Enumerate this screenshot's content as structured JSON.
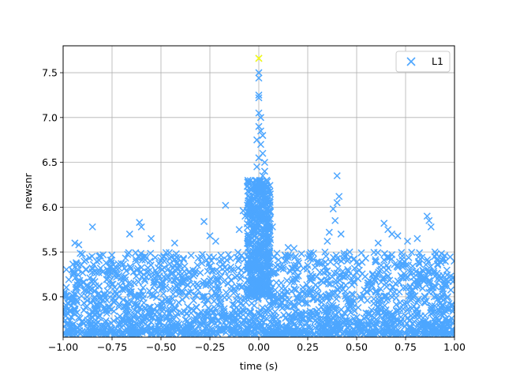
{
  "chart_data": {
    "type": "scatter",
    "title": "",
    "xlabel": "time (s)",
    "ylabel": "newsnr",
    "xlim": [
      -1.0,
      1.0
    ],
    "ylim": [
      4.55,
      7.8
    ],
    "xticks": [
      -1.0,
      -0.75,
      -0.5,
      -0.25,
      0.0,
      0.25,
      0.5,
      0.75,
      1.0
    ],
    "xtick_labels": [
      "−1.00",
      "−0.75",
      "−0.50",
      "−0.25",
      "0.00",
      "0.25",
      "0.50",
      "0.75",
      "1.00"
    ],
    "yticks": [
      5.0,
      5.5,
      6.0,
      6.5,
      7.0,
      7.5
    ],
    "ytick_labels": [
      "5.0",
      "5.5",
      "6.0",
      "6.5",
      "7.0",
      "7.5"
    ],
    "grid": true,
    "legend_position": "upper right",
    "series": [
      {
        "name": "L1",
        "marker": "x",
        "color": "#4da6ff",
        "note_points": "dense band of triggers across full time range, peak near t=0",
        "points": [
          [
            0.0,
            7.66
          ],
          [
            0.0,
            7.5
          ],
          [
            0.0,
            7.44
          ],
          [
            0.0,
            7.25
          ],
          [
            0.0,
            7.22
          ],
          [
            0.0,
            7.05
          ],
          [
            0.01,
            7.0
          ],
          [
            0.0,
            6.9
          ],
          [
            0.01,
            6.85
          ],
          [
            0.02,
            6.8
          ],
          [
            -0.01,
            6.75
          ],
          [
            0.01,
            6.7
          ],
          [
            0.02,
            6.6
          ],
          [
            0.0,
            6.55
          ],
          [
            0.03,
            6.5
          ],
          [
            -0.01,
            6.45
          ],
          [
            0.03,
            6.4
          ],
          [
            0.02,
            6.35
          ],
          [
            0.04,
            6.3
          ],
          [
            0.03,
            6.25
          ],
          [
            0.05,
            6.2
          ],
          [
            0.04,
            6.1
          ],
          [
            0.05,
            6.05
          ],
          [
            0.06,
            5.95
          ],
          [
            -0.02,
            6.0
          ],
          [
            -0.04,
            5.98
          ],
          [
            0.4,
            6.35
          ],
          [
            0.41,
            6.12
          ],
          [
            0.4,
            6.05
          ],
          [
            0.38,
            5.98
          ],
          [
            0.39,
            5.85
          ],
          [
            0.36,
            5.72
          ],
          [
            0.42,
            5.7
          ],
          [
            -0.17,
            6.02
          ],
          [
            -0.61,
            5.83
          ],
          [
            -0.6,
            5.78
          ],
          [
            -0.85,
            5.78
          ],
          [
            -0.94,
            5.6
          ],
          [
            -0.92,
            5.58
          ],
          [
            -0.66,
            5.7
          ],
          [
            -0.55,
            5.65
          ],
          [
            -0.43,
            5.6
          ],
          [
            -0.28,
            5.84
          ],
          [
            -0.25,
            5.68
          ],
          [
            -0.22,
            5.62
          ],
          [
            -0.1,
            5.75
          ],
          [
            -0.07,
            5.9
          ],
          [
            -0.08,
            5.96
          ],
          [
            0.07,
            5.78
          ],
          [
            0.15,
            5.55
          ],
          [
            0.18,
            5.54
          ],
          [
            0.35,
            5.62
          ],
          [
            0.61,
            5.6
          ],
          [
            0.64,
            5.82
          ],
          [
            0.66,
            5.75
          ],
          [
            0.68,
            5.7
          ],
          [
            0.71,
            5.68
          ],
          [
            0.76,
            5.62
          ],
          [
            0.81,
            5.65
          ],
          [
            0.86,
            5.9
          ],
          [
            0.87,
            5.85
          ],
          [
            0.88,
            5.78
          ],
          [
            0.9,
            5.5
          ],
          [
            0.95,
            5.46
          ],
          [
            0.98,
            5.23
          ]
        ]
      }
    ],
    "highlight": {
      "x": 0.0,
      "y": 7.66,
      "color": "#ffff00"
    }
  }
}
